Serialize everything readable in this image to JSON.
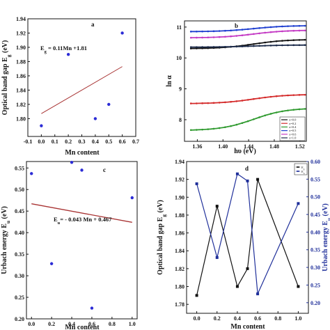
{
  "chart_data": [
    {
      "panel": "a",
      "type": "scatter",
      "xlabel": "Mn content",
      "ylabel": "Optical band gap E",
      "ylabel_sub": "g",
      "ylabel_unit": "(eV)",
      "xlim": [
        -0.1,
        0.7
      ],
      "ylim": [
        1.775,
        1.94
      ],
      "xticks": [
        "-0.1",
        "0.0",
        "0.1",
        "0.2",
        "0.3",
        "0.4",
        "0.5",
        "0.6",
        "0.7"
      ],
      "yticks": [
        "1.80",
        "1.82",
        "1.84",
        "1.86",
        "1.88",
        "1.90",
        "1.92",
        "1.94"
      ],
      "points": [
        {
          "x": 0.0,
          "y": 1.79
        },
        {
          "x": 0.2,
          "y": 1.89
        },
        {
          "x": 0.4,
          "y": 1.8
        },
        {
          "x": 0.5,
          "y": 1.82
        },
        {
          "x": 0.6,
          "y": 1.92
        }
      ],
      "fit_line": {
        "x": [
          0.0,
          0.6
        ],
        "y": [
          1.807,
          1.873
        ]
      },
      "equation": "E",
      "equation_sub": "g",
      "equation_rest": " = 0.11Mn +1.81",
      "colors": {
        "points": "#2c2cd6",
        "fit": "#a83232"
      }
    },
    {
      "panel": "b",
      "type": "line",
      "xlabel": "hυ (eV)",
      "ylabel": "ln α",
      "xlim": [
        1.34,
        1.53
      ],
      "ylim": [
        7.3,
        11.2
      ],
      "xticks": [
        "1.36",
        "1.40",
        "1.44",
        "1.48",
        "1.52"
      ],
      "yticks": [
        "8",
        "9",
        "10",
        "11"
      ],
      "series": [
        {
          "name": "x=0.0",
          "color": "#111111",
          "y_start": 10.3,
          "y_end": 10.6
        },
        {
          "name": "x=0.2",
          "color": "#d42a2a",
          "y_start": 8.52,
          "y_end": 8.82
        },
        {
          "name": "x=0.4",
          "color": "#2f9a2f",
          "y_start": 7.65,
          "y_end": 8.38
        },
        {
          "name": "x=0.5",
          "color": "#1f3fd0",
          "y_start": 10.85,
          "y_end": 11.05
        },
        {
          "name": "x=0.6",
          "color": "#c43ac4",
          "y_start": 10.65,
          "y_end": 10.9
        },
        {
          "name": "x=1.0",
          "color": "#1b2a4a",
          "y_start": 10.35,
          "y_end": 10.42
        }
      ],
      "legend_position": "bottom-right",
      "colors": {
        "frame": "#111111"
      }
    },
    {
      "panel": "c",
      "type": "scatter",
      "xlabel": "Mn content",
      "ylabel": "Urbach energy E",
      "ylabel_sub": "u",
      "ylabel_unit": "(eV)",
      "xlim": [
        -0.05,
        1.05
      ],
      "ylim": [
        0.2,
        0.565
      ],
      "xticks": [
        "0.0",
        "0.2",
        "0.4",
        "0.6",
        "0.8",
        "1.0"
      ],
      "yticks": [
        "0.20",
        "0.25",
        "0.30",
        "0.35",
        "0.40",
        "0.45",
        "0.50",
        "0.55"
      ],
      "points": [
        {
          "x": 0.0,
          "y": 0.537
        },
        {
          "x": 0.2,
          "y": 0.328
        },
        {
          "x": 0.4,
          "y": 0.565
        },
        {
          "x": 0.5,
          "y": 0.545
        },
        {
          "x": 0.6,
          "y": 0.225
        },
        {
          "x": 1.0,
          "y": 0.481
        }
      ],
      "fit_line": {
        "x": [
          0.0,
          1.0
        ],
        "y": [
          0.467,
          0.424
        ]
      },
      "equation": "E",
      "equation_sub": "u",
      "equation_rest": "= - 0.043 Mn + 0.467",
      "colors": {
        "points": "#2c2cd6",
        "fit": "#a83232"
      }
    },
    {
      "panel": "d",
      "type": "line",
      "xlabel": "Mn content",
      "ylabel_left": "Optical band gap E",
      "ylabel_left_sub": "g",
      "ylabel_left_unit": "(eV)",
      "ylabel_right": "Urbach energy E",
      "ylabel_right_sub": "u",
      "ylabel_right_unit": "(eV)",
      "x": [
        0.0,
        0.2,
        0.4,
        0.5,
        0.6,
        1.0
      ],
      "xlim": [
        -0.1,
        1.1
      ],
      "ylim_left": [
        1.77,
        1.94
      ],
      "ylim_right": [
        0.17,
        0.6
      ],
      "xticks": [
        "0.0",
        "0.2",
        "0.4",
        "0.6",
        "0.8",
        "1.0"
      ],
      "yticks_left": [
        "1.78",
        "1.80",
        "1.82",
        "1.84",
        "1.86",
        "1.88",
        "1.90",
        "1.92",
        "1.94"
      ],
      "yticks_right": [
        "0.20",
        "0.25",
        "0.30",
        "0.35",
        "0.40",
        "0.45",
        "0.50",
        "0.55",
        "0.60"
      ],
      "series": [
        {
          "name": "E",
          "name_sub": "g",
          "axis": "left",
          "color": "#111111",
          "values": [
            1.79,
            1.89,
            1.8,
            1.82,
            1.92,
            1.8
          ]
        },
        {
          "name": "E",
          "name_sub": "u",
          "axis": "right",
          "color": "#1f2f9a",
          "values": [
            0.537,
            0.328,
            0.565,
            0.545,
            0.225,
            0.481
          ]
        }
      ],
      "legend_position": "top-right"
    }
  ]
}
